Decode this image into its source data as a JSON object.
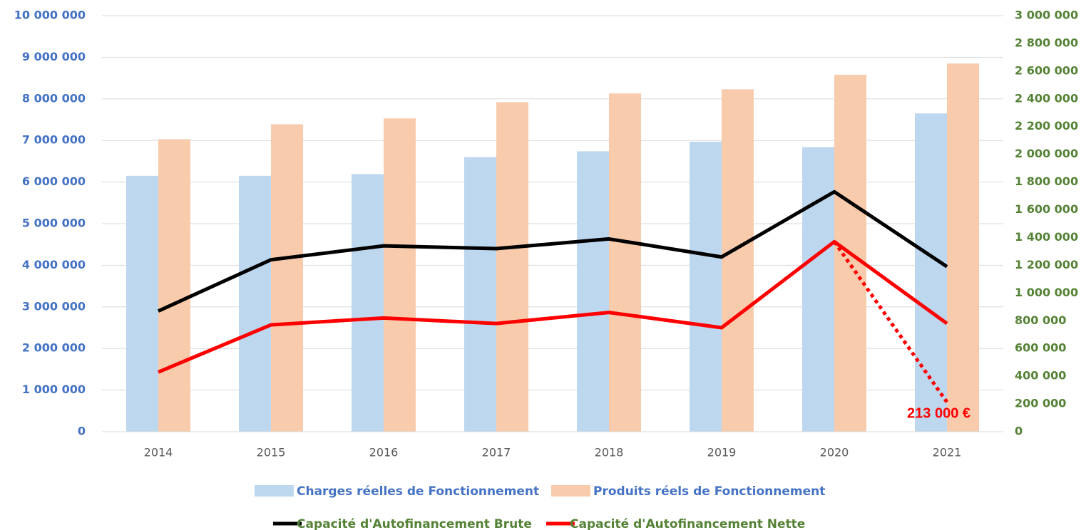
{
  "chart_data": {
    "type": "bar_line",
    "categories": [
      "2014",
      "2015",
      "2016",
      "2017",
      "2018",
      "2019",
      "2020",
      "2021"
    ],
    "series": [
      {
        "name": "Charges réelles de Fonctionnement",
        "color": "#bdd7ee",
        "kind": "bar",
        "axis": "y",
        "values": [
          6150000,
          6150000,
          6190000,
          6600000,
          6740000,
          6970000,
          6840000,
          7650000
        ]
      },
      {
        "name": "Produits réels de Fonctionnement",
        "color": "#f8cbad",
        "kind": "bar",
        "axis": "y",
        "values": [
          7030000,
          7390000,
          7530000,
          7920000,
          8130000,
          8230000,
          8580000,
          8850000
        ]
      },
      {
        "name": "Capacité d'Autofinancement Brute",
        "color": "#000000",
        "kind": "line",
        "axis": "y2",
        "values": [
          870000,
          1240000,
          1340000,
          1320000,
          1390000,
          1260000,
          1730000,
          1190000
        ]
      },
      {
        "name": "Capacité d'Autofinancement Nette",
        "color": "#ff0000",
        "kind": "line",
        "axis": "y2",
        "values": [
          430000,
          770000,
          820000,
          780000,
          860000,
          750000,
          1370000,
          780000
        ]
      }
    ],
    "annotation": {
      "text": "213 000 €",
      "value": 213000,
      "from": 6,
      "to": 7,
      "color": "#ff0000"
    },
    "ylim": [
      0,
      10000000
    ],
    "yticks": [
      0,
      {
        "value": 1000000,
        "label": "1 000 000"
      },
      {
        "value": 2000000,
        "label": "2 000 000"
      },
      {
        "value": 3000000,
        "label": "3 000 000"
      },
      {
        "value": 4000000,
        "label": "4 000 000"
      },
      {
        "value": 5000000,
        "label": "5 000 000"
      },
      {
        "value": 6000000,
        "label": "6 000 000"
      },
      {
        "value": 7000000,
        "label": "7 000 000"
      },
      {
        "value": 8000000,
        "label": "8 000 000"
      },
      {
        "value": 9000000,
        "label": "9 000 000"
      },
      {
        "value": 10000000,
        "label": "10 000 000"
      }
    ],
    "y2lim": [
      0,
      3000000
    ],
    "y2ticks": [
      0,
      {
        "value": 200000,
        "label": "200 000"
      },
      {
        "value": 400000,
        "label": "400 000"
      },
      {
        "value": 600000,
        "label": "600 000"
      },
      {
        "value": 800000,
        "label": "800 000"
      },
      {
        "value": 1000000,
        "label": "1 000 000"
      },
      {
        "value": 1200000,
        "label": "1 200 000"
      },
      {
        "value": 1400000,
        "label": "1 400 000"
      },
      {
        "value": 1600000,
        "label": "1 600 000"
      },
      {
        "value": 1800000,
        "label": "1 800 000"
      },
      {
        "value": 2000000,
        "label": "2 000 000"
      },
      {
        "value": 2200000,
        "label": "2 200 000"
      },
      {
        "value": 2400000,
        "label": "2 400 000"
      },
      {
        "value": 2600000,
        "label": "2 600 000"
      },
      {
        "value": 2800000,
        "label": "2 800 000"
      },
      {
        "value": 3000000,
        "label": "3 000 000"
      }
    ],
    "grid": true
  }
}
